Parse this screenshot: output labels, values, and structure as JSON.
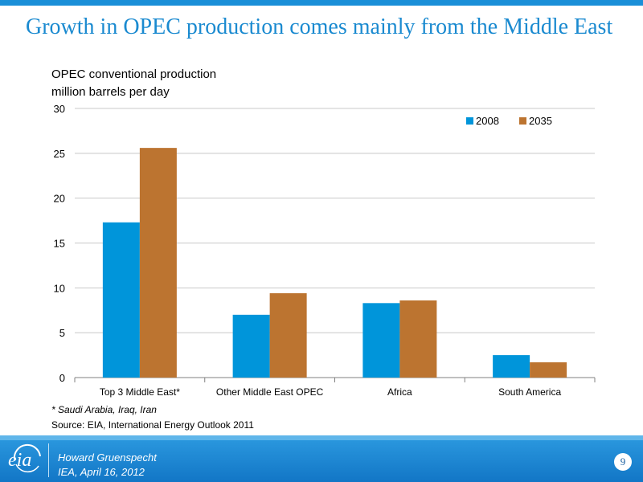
{
  "slide": {
    "title": "Growth in OPEC production comes mainly from the Middle East",
    "footnote": "* Saudi Arabia, Iraq, Iran",
    "source": "Source:  EIA, International Energy Outlook 2011"
  },
  "footer": {
    "logo_text": "eia",
    "presenter": "Howard Gruenspecht",
    "event": "IEA, April 16, 2012",
    "page_number": "9"
  },
  "colors": {
    "accent": "#1a8ad0",
    "series_2008": "#0095da",
    "series_2035": "#bc7430",
    "footer": "#1a82cf"
  },
  "chart_data": {
    "type": "bar",
    "title_lines": [
      "OPEC conventional production",
      "million barrels per day"
    ],
    "categories": [
      "Top 3 Middle East*",
      "Other Middle East OPEC",
      "Africa",
      "South America"
    ],
    "series": [
      {
        "name": "2008",
        "values": [
          17.3,
          7.0,
          8.3,
          2.5
        ]
      },
      {
        "name": "2035",
        "values": [
          25.6,
          9.4,
          8.6,
          1.7
        ]
      }
    ],
    "ylim": [
      0,
      30
    ],
    "yticks": [
      "0",
      "5",
      "10",
      "15",
      "20",
      "25",
      "30"
    ],
    "grid": true,
    "legend": "top-right"
  }
}
